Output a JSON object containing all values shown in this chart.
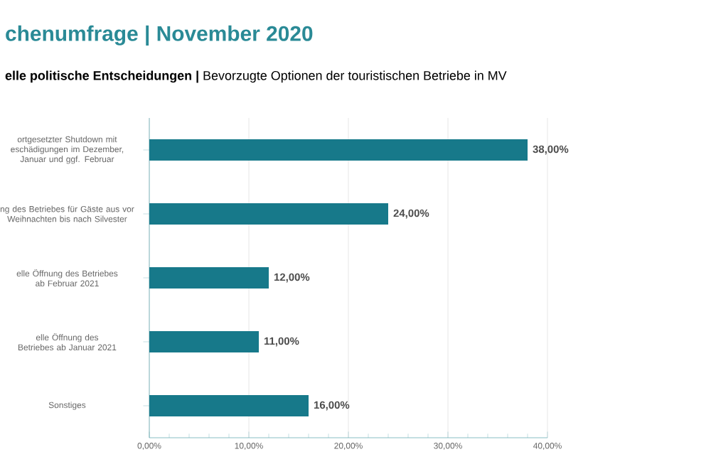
{
  "chart_data": {
    "type": "bar",
    "orientation": "horizontal",
    "title": "chenumfrage | November 2020",
    "subtitle": "**elle politische Entscheidungen |** Bevorzugte Optionen der touristischen Betriebe in MV",
    "categories": [
      "ortgesetzter Shutdown mit eschädigungen im Dezember, Januar und ggf. Februar",
      "ng des Betriebes für Gäste aus vor Weihnachten bis nach Silvester",
      "elle Öffnung des Betriebes ab Februar 2021",
      "elle Öffnung des Betriebes ab Januar 2021",
      "Sonstiges"
    ],
    "values": [
      38,
      24,
      12,
      11,
      16
    ],
    "color": "#17798a",
    "value_labels": [
      "38,00%",
      "24,00%",
      "12,00%",
      "11,00%",
      "16,00%"
    ],
    "xlim": [
      0,
      40
    ],
    "xticks": [
      {
        "value": 0,
        "label": "0,00%"
      },
      {
        "value": 10,
        "label": "10,00%"
      },
      {
        "value": 20,
        "label": "20,00%"
      },
      {
        "value": 30,
        "label": "30,00%"
      },
      {
        "value": 40,
        "label": "40,00%"
      }
    ],
    "grid": "x"
  }
}
